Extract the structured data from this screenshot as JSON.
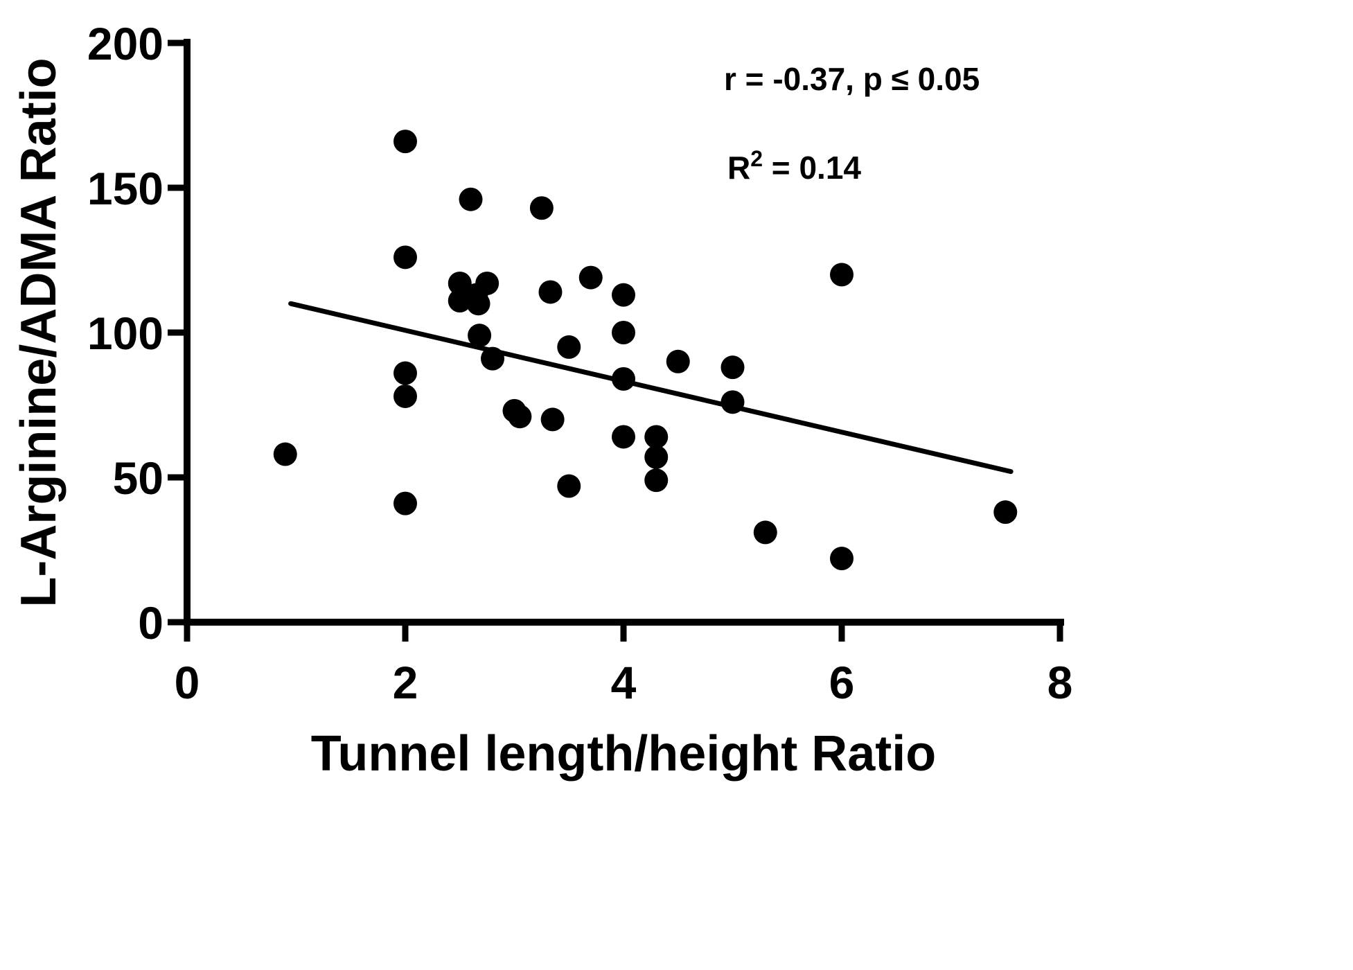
{
  "chart_data": {
    "type": "scatter",
    "title": "",
    "xlabel": "Tunnel length/height Ratio",
    "ylabel": "L-Arginine/ADMA Ratio",
    "xlim": [
      0,
      8
    ],
    "ylim": [
      0,
      200
    ],
    "xticks": [
      0,
      2,
      4,
      6,
      8
    ],
    "yticks": [
      0,
      50,
      100,
      150,
      200
    ],
    "grid": false,
    "legend": "none",
    "marker": {
      "shape": "circle",
      "color": "#000000",
      "radius_px": 17
    },
    "annotation_r": "r = -0.37, p ≤ 0.05",
    "annotation_r2": {
      "base": "R",
      "exponent": "2",
      "rest": " = 0.14"
    },
    "points": [
      [
        0.9,
        58
      ],
      [
        2.0,
        166
      ],
      [
        2.0,
        126
      ],
      [
        2.0,
        86
      ],
      [
        2.0,
        78
      ],
      [
        2.0,
        41
      ],
      [
        2.5,
        117
      ],
      [
        2.5,
        111
      ],
      [
        2.6,
        146
      ],
      [
        2.65,
        113
      ],
      [
        2.67,
        110
      ],
      [
        2.68,
        99
      ],
      [
        2.75,
        117
      ],
      [
        2.8,
        91
      ],
      [
        3.0,
        73
      ],
      [
        3.05,
        71
      ],
      [
        3.25,
        143
      ],
      [
        3.33,
        114
      ],
      [
        3.35,
        70
      ],
      [
        3.5,
        95
      ],
      [
        3.5,
        47
      ],
      [
        3.7,
        119
      ],
      [
        4.0,
        113
      ],
      [
        4.0,
        100
      ],
      [
        4.0,
        84
      ],
      [
        4.0,
        64
      ],
      [
        4.3,
        64
      ],
      [
        4.3,
        57
      ],
      [
        4.3,
        49
      ],
      [
        4.5,
        90
      ],
      [
        5.0,
        88
      ],
      [
        5.0,
        76
      ],
      [
        5.3,
        31
      ],
      [
        6.0,
        120
      ],
      [
        6.0,
        22
      ],
      [
        7.5,
        38
      ]
    ],
    "trendline": {
      "x1": 0.95,
      "y1": 110,
      "x2": 7.55,
      "y2": 52
    }
  }
}
